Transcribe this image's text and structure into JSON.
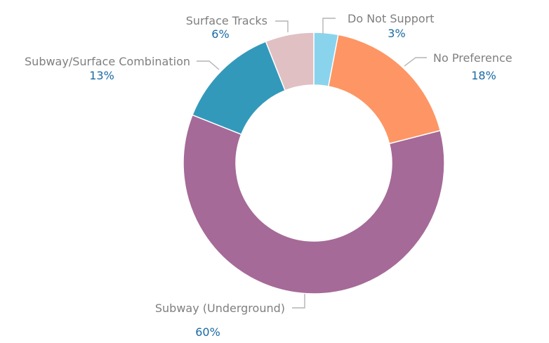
{
  "chart_data": {
    "type": "pie",
    "donut": true,
    "categories": [
      "Do Not Support",
      "No Preference",
      "Subway (Underground)",
      "Subway/Surface Combination",
      "Surface Tracks"
    ],
    "values": [
      3,
      18,
      60,
      13,
      6
    ],
    "value_labels": [
      "3%",
      "18%",
      "60%",
      "13%",
      "6%"
    ],
    "colors": [
      "#8ad3ed",
      "#fd9664",
      "#a56a98",
      "#3399bb",
      "#e0c0c3"
    ],
    "title": "",
    "legend": "none"
  }
}
